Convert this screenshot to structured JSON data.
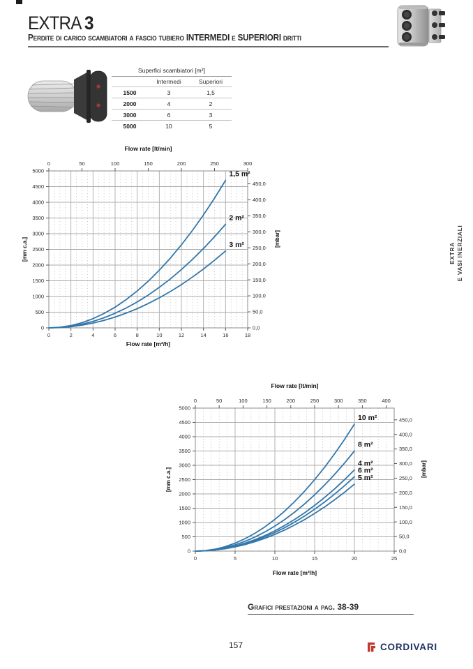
{
  "page": {
    "number": "157"
  },
  "header": {
    "title": "EXTRA",
    "title_number": "3",
    "subtitle": "Perdite di carico scambiatori a fascio tubiero INTERMEDI e SUPERIORI dritti"
  },
  "side_tab": {
    "line1": "EXTRA",
    "line2": "E VASI INERZIALI"
  },
  "surface_table": {
    "title": "Superfici scambiatori [m²]",
    "columns": [
      "Intermedi",
      "Superiori"
    ],
    "rows": [
      {
        "model": "1500",
        "intermedi": "3",
        "superiori": "1,5"
      },
      {
        "model": "2000",
        "intermedi": "4",
        "superiori": "2"
      },
      {
        "model": "3000",
        "intermedi": "6",
        "superiori": "3"
      },
      {
        "model": "5000",
        "intermedi": "10",
        "superiori": "5"
      }
    ]
  },
  "footer": {
    "note": "Grafici prestazioni a pag. 38-39",
    "brand": "CORDIVARI"
  },
  "colors": {
    "curve": "#3377aa",
    "grid_major": "#ababab",
    "grid_minor": "#c4c4c4",
    "plot_border": "#8c8c8c",
    "logo_red": "#c0392b",
    "logo_navy": "#1e3560"
  },
  "chart_data": [
    {
      "type": "line",
      "top_axis": {
        "title": "Flow rate [lt/min]",
        "to_x_factor": 0.06,
        "tick_values": [
          0,
          50,
          100,
          150,
          200,
          250,
          300
        ],
        "tick_labels": [
          "0",
          "50",
          "100",
          "150",
          "200",
          "250",
          "300"
        ]
      },
      "x_axis": {
        "title": "Flow rate [m³/h]",
        "min": 0,
        "max": 18,
        "major_step": 2,
        "minor_step": 0.5,
        "tick_values": [
          0,
          2,
          4,
          6,
          8,
          10,
          12,
          14,
          16,
          18
        ],
        "tick_labels": [
          "0",
          "2",
          "4",
          "6",
          "8",
          "10",
          "12",
          "14",
          "16",
          "18"
        ]
      },
      "y_left": {
        "title": "[mm c.a.]",
        "min": 0,
        "max": 5000,
        "major_step": 500,
        "tick_values": [
          0,
          500,
          1000,
          1500,
          2000,
          2500,
          3000,
          3500,
          4000,
          4500,
          5000
        ],
        "tick_labels": [
          "0",
          "500",
          "1000",
          "1500",
          "2000",
          "2500",
          "3000",
          "3500",
          "4000",
          "4500",
          "5000"
        ]
      },
      "y_right": {
        "title": "[mbar]",
        "mm_per_unit": 10.2,
        "tick_values": [
          0,
          50,
          100,
          150,
          200,
          250,
          300,
          350,
          400,
          450
        ],
        "tick_labels": [
          "0,0",
          "50,0",
          "100,0",
          "150,0",
          "200,0",
          "250,0",
          "300,0",
          "350,0",
          "400,0",
          "450,0"
        ]
      },
      "series": [
        {
          "name": "1,5 m²",
          "x": [
            0,
            1,
            2,
            3,
            4,
            5,
            6,
            7,
            8,
            9,
            10,
            11,
            12,
            13,
            14,
            15,
            16
          ],
          "y": [
            0,
            18,
            73,
            165,
            294,
            459,
            661,
            900,
            1175,
            1487,
            1836,
            2222,
            2644,
            3103,
            3599,
            4131,
            4700
          ]
        },
        {
          "name": "2 m²",
          "x": [
            0,
            1,
            2,
            3,
            4,
            5,
            6,
            7,
            8,
            9,
            10,
            11,
            12,
            13,
            14,
            15,
            16
          ],
          "y": [
            0,
            13,
            52,
            116,
            206,
            323,
            464,
            632,
            826,
            1045,
            1290,
            1561,
            1858,
            2180,
            2528,
            2903,
            3300
          ]
        },
        {
          "name": "3 m²",
          "x": [
            0,
            1,
            2,
            3,
            4,
            5,
            6,
            7,
            8,
            9,
            10,
            11,
            12,
            13,
            14,
            15,
            16
          ],
          "y": [
            0,
            10,
            38,
            86,
            153,
            239,
            344,
            469,
            612,
            775,
            957,
            1158,
            1378,
            1617,
            1876,
            2153,
            2450
          ]
        }
      ]
    },
    {
      "type": "line",
      "top_axis": {
        "title": "Flow rate [lt/min]",
        "to_x_factor": 0.06,
        "tick_values": [
          0,
          50,
          100,
          150,
          200,
          250,
          300,
          350,
          400
        ],
        "tick_labels": [
          "0",
          "50",
          "100",
          "150",
          "200",
          "250",
          "300",
          "350",
          "400"
        ]
      },
      "x_axis": {
        "title": "Flow rate [m³/h]",
        "min": 0,
        "max": 25,
        "major_step": 5,
        "minor_step": 1,
        "tick_values": [
          0,
          5,
          10,
          15,
          20,
          25
        ],
        "tick_labels": [
          "0",
          "5",
          "10",
          "15",
          "20",
          "25"
        ]
      },
      "y_left": {
        "title": "[mm c.a.]",
        "min": 0,
        "max": 5000,
        "major_step": 500,
        "tick_values": [
          0,
          500,
          1000,
          1500,
          2000,
          2500,
          3000,
          3500,
          4000,
          4500,
          5000
        ],
        "tick_labels": [
          "0",
          "500",
          "1000",
          "1500",
          "2000",
          "2500",
          "3000",
          "3500",
          "4000",
          "4500",
          "5000"
        ]
      },
      "y_right": {
        "title": "[mbar]",
        "mm_per_unit": 10.2,
        "tick_values": [
          0,
          50,
          100,
          150,
          200,
          250,
          300,
          350,
          400,
          450
        ],
        "tick_labels": [
          "0,0",
          "50,0",
          "100,0",
          "150,0",
          "200,0",
          "250,0",
          "300,0",
          "350,0",
          "400,0",
          "450,0"
        ]
      },
      "series": [
        {
          "name": "10 m²",
          "x": [
            0,
            1.25,
            2.5,
            3.75,
            5,
            6.25,
            7.5,
            8.75,
            10,
            11.25,
            12.5,
            13.75,
            15,
            16.25,
            17.5,
            18.75,
            20
          ],
          "y": [
            0,
            17,
            69,
            156,
            278,
            434,
            624,
            850,
            1110,
            1405,
            1734,
            2099,
            2498,
            2931,
            3399,
            3902,
            4440
          ]
        },
        {
          "name": "8 m²",
          "x": [
            0,
            1.25,
            2.5,
            3.75,
            5,
            6.25,
            7.5,
            8.75,
            10,
            11.25,
            12.5,
            13.75,
            15,
            16.25,
            17.5,
            18.75,
            20
          ],
          "y": [
            0,
            14,
            55,
            123,
            219,
            342,
            492,
            670,
            875,
            1107,
            1367,
            1654,
            1969,
            2311,
            2680,
            3076,
            3500
          ]
        },
        {
          "name": "4 m²",
          "x": [
            0,
            1.25,
            2.5,
            3.75,
            5,
            6.25,
            7.5,
            8.75,
            10,
            11.25,
            12.5,
            13.75,
            15,
            16.25,
            17.5,
            18.75,
            20
          ],
          "y": [
            0,
            11,
            44,
            100,
            178,
            277,
            399,
            544,
            710,
            899,
            1109,
            1342,
            1598,
            1875,
            2174,
            2496,
            2840
          ]
        },
        {
          "name": "6 m²",
          "x": [
            0,
            1.25,
            2.5,
            3.75,
            5,
            6.25,
            7.5,
            8.75,
            10,
            11.25,
            12.5,
            13.75,
            15,
            16.25,
            17.5,
            18.75,
            20
          ],
          "y": [
            0,
            10,
            41,
            91,
            163,
            254,
            366,
            498,
            650,
            823,
            1016,
            1229,
            1463,
            1717,
            1991,
            2285,
            2600
          ]
        },
        {
          "name": "5 m²",
          "x": [
            0,
            1.25,
            2.5,
            3.75,
            5,
            6.25,
            7.5,
            8.75,
            10,
            11.25,
            12.5,
            13.75,
            15,
            16.25,
            17.5,
            18.75,
            20
          ],
          "y": [
            0,
            9,
            37,
            82,
            146,
            229,
            329,
            448,
            585,
            740,
            914,
            1106,
            1316,
            1545,
            1792,
            2057,
            2340
          ]
        }
      ]
    }
  ]
}
